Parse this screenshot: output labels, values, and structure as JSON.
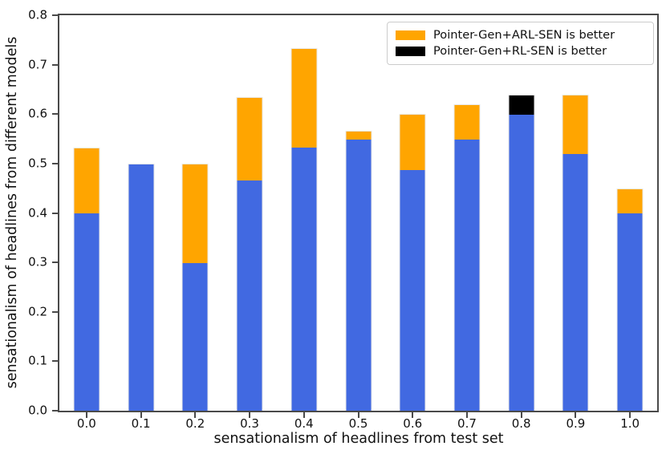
{
  "chart_data": {
    "type": "bar",
    "stacked": true,
    "title": "",
    "xlabel": "sensationalism of headlines from test set",
    "ylabel": "sensationalism of headlines from different models",
    "categories": [
      "0.0",
      "0.1",
      "0.2",
      "0.3",
      "0.4",
      "0.5",
      "0.6",
      "0.7",
      "0.8",
      "0.9",
      "1.0"
    ],
    "series": [
      {
        "name": "",
        "in_legend": false,
        "color": "#4169E1",
        "values": [
          0.4,
          0.5,
          0.3,
          0.467,
          0.533,
          0.55,
          0.488,
          0.55,
          0.6,
          0.52,
          0.4
        ]
      },
      {
        "name": "Pointer-Gen+ARL-SEN is better",
        "in_legend": true,
        "color": "#FFA500",
        "values": [
          0.133,
          0,
          0.2,
          0.167,
          0.2,
          0.017,
          0.112,
          0.07,
          0,
          0.12,
          0.05
        ]
      },
      {
        "name": "Pointer-Gen+RL-SEN is better",
        "in_legend": true,
        "color": "#000000",
        "values": [
          0,
          0,
          0,
          0,
          0,
          0,
          0,
          0,
          0.04,
          0,
          0
        ]
      }
    ],
    "bar_totals": [
      0.533,
      0.5,
      0.5,
      0.633,
      0.733,
      0.567,
      0.6,
      0.62,
      0.64,
      0.64,
      0.45
    ],
    "ylim": [
      0,
      0.8
    ],
    "yticks": [
      "0.0",
      "0.1",
      "0.2",
      "0.3",
      "0.4",
      "0.5",
      "0.6",
      "0.7",
      "0.8"
    ],
    "grid": false,
    "legend": {
      "position": "upper right",
      "entries": [
        {
          "label": "Pointer-Gen+ARL-SEN is better",
          "color": "#FFA500"
        },
        {
          "label": "Pointer-Gen+RL-SEN is better",
          "color": "#000000"
        }
      ]
    },
    "colors": {
      "blue": "#4169E1",
      "orange": "#FFA500",
      "black": "#000000"
    }
  }
}
